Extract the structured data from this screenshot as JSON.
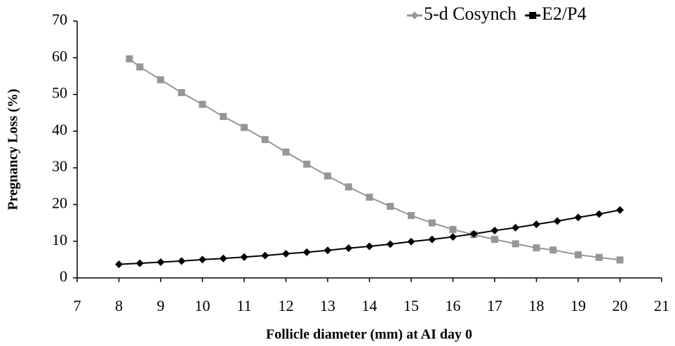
{
  "chart_data": {
    "type": "line",
    "x_label": "Follicle diameter (mm) at AI day 0",
    "y_label": "Pregnancy Loss (%)",
    "xlim": [
      7,
      21
    ],
    "xticks": [
      7,
      8,
      9,
      10,
      11,
      12,
      13,
      14,
      15,
      16,
      17,
      18,
      19,
      20,
      21
    ],
    "ylim": [
      0,
      70
    ],
    "yticks": [
      0,
      10,
      20,
      30,
      40,
      50,
      60,
      70
    ],
    "grid": false,
    "legend": "top-right",
    "series": [
      {
        "name": "5-d Cosynch",
        "color": "#969696",
        "marker": "square",
        "x": [
          8.25,
          8.5,
          9,
          9.5,
          10,
          10.5,
          11,
          11.5,
          12,
          12.5,
          13,
          13.5,
          14,
          14.5,
          15,
          15.5,
          16,
          16.5,
          17,
          17.5,
          18,
          18.4,
          19,
          19.5,
          20
        ],
        "values": [
          59.7,
          57.5,
          54,
          50.5,
          47.3,
          44,
          41,
          37.7,
          34.3,
          31,
          27.8,
          24.8,
          22,
          19.5,
          17,
          15,
          13.2,
          11.8,
          10.5,
          9.3,
          8.2,
          7.6,
          6.3,
          5.6,
          4.9
        ]
      },
      {
        "name": "E2/P4",
        "color": "#000000",
        "marker": "diamond",
        "x": [
          8,
          8.5,
          9,
          9.5,
          10,
          10.5,
          11,
          11.5,
          12,
          12.5,
          13,
          13.5,
          14,
          14.5,
          15,
          15.5,
          16,
          16.5,
          17,
          17.5,
          18,
          18.5,
          19,
          19.5,
          20
        ],
        "values": [
          3.7,
          4,
          4.3,
          4.6,
          5,
          5.3,
          5.7,
          6.1,
          6.6,
          7,
          7.5,
          8.1,
          8.6,
          9.2,
          9.9,
          10.5,
          11.2,
          12,
          12.9,
          13.7,
          14.6,
          15.5,
          16.5,
          17.4,
          18.5
        ]
      }
    ]
  }
}
